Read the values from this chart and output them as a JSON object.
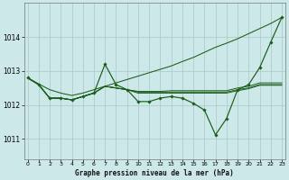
{
  "bg_color": "#cce8e8",
  "grid_color": "#b0cccc",
  "line_color": "#1a5c1a",
  "x_ticks": [
    0,
    1,
    2,
    3,
    4,
    5,
    6,
    7,
    8,
    9,
    10,
    11,
    12,
    13,
    14,
    15,
    16,
    17,
    18,
    19,
    20,
    21,
    22,
    23
  ],
  "y_ticks": [
    1011,
    1012,
    1013,
    1014
  ],
  "ylim": [
    1010.4,
    1015.0
  ],
  "xlim": [
    -0.3,
    23.3
  ],
  "xlabel": "Graphe pression niveau de la mer (hPa)",
  "series_no_marker": [
    [
      1012.8,
      1012.6,
      1012.2,
      1012.2,
      1012.15,
      1012.25,
      1012.35,
      1012.55,
      1012.5,
      1012.45,
      1012.4,
      1012.4,
      1012.4,
      1012.42,
      1012.42,
      1012.42,
      1012.42,
      1012.42,
      1012.42,
      1012.5,
      1012.55,
      1012.65,
      1012.65,
      1012.65
    ],
    [
      1012.8,
      1012.6,
      1012.2,
      1012.2,
      1012.15,
      1012.25,
      1012.35,
      1012.55,
      1012.5,
      1012.45,
      1012.38,
      1012.38,
      1012.38,
      1012.38,
      1012.38,
      1012.38,
      1012.38,
      1012.38,
      1012.38,
      1012.45,
      1012.5,
      1012.6,
      1012.6,
      1012.6
    ],
    [
      1012.8,
      1012.6,
      1012.2,
      1012.2,
      1012.15,
      1012.25,
      1012.35,
      1012.55,
      1012.5,
      1012.45,
      1012.35,
      1012.35,
      1012.35,
      1012.35,
      1012.35,
      1012.35,
      1012.35,
      1012.35,
      1012.35,
      1012.42,
      1012.48,
      1012.58,
      1012.58,
      1012.58
    ]
  ],
  "series_diagonal": [
    1012.8,
    1012.62,
    1012.45,
    1012.35,
    1012.28,
    1012.35,
    1012.45,
    1012.55,
    1012.65,
    1012.75,
    1012.85,
    1012.95,
    1013.05,
    1013.15,
    1013.28,
    1013.4,
    1013.55,
    1013.7,
    1013.82,
    1013.95,
    1014.1,
    1014.25,
    1014.4,
    1014.58
  ],
  "series_marker": [
    1012.8,
    1012.6,
    1012.2,
    1012.2,
    1012.15,
    1012.25,
    1012.35,
    1013.2,
    1012.6,
    1012.45,
    1012.1,
    1012.1,
    1012.2,
    1012.25,
    1012.2,
    1012.05,
    1011.85,
    1011.12,
    1011.6,
    1012.45,
    1012.6,
    1013.1,
    1013.85,
    1014.58
  ]
}
